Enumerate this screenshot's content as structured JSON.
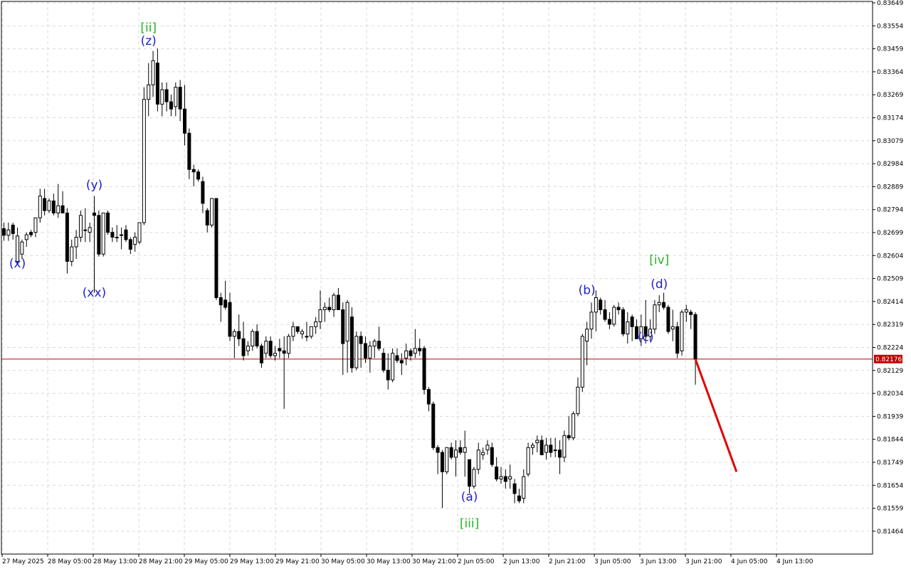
{
  "chart_data": {
    "type": "candlestick",
    "symbol_price_line": "0.82176",
    "y_axis": {
      "ticks": [
        "0.83649",
        "0.83554",
        "0.83459",
        "0.83364",
        "0.83269",
        "0.83174",
        "0.83079",
        "0.82984",
        "0.82889",
        "0.82794",
        "0.82699",
        "0.82604",
        "0.82509",
        "0.82414",
        "0.82319",
        "0.82224",
        "0.82129",
        "0.82034",
        "0.81939",
        "0.81844",
        "0.81749",
        "0.81654",
        "0.81559",
        "0.81464"
      ],
      "range": [
        0.8138,
        0.8368
      ]
    },
    "x_axis": {
      "ticks": [
        "27 May 2025",
        "28 May 05:00",
        "28 May 13:00",
        "28 May 21:00",
        "29 May 05:00",
        "29 May 13:00",
        "29 May 21:00",
        "30 May 05:00",
        "30 May 13:00",
        "30 May 21:00",
        "2 Jun 05:00",
        "2 Jun 13:00",
        "2 Jun 21:00",
        "3 Jun 05:00",
        "3 Jun 13:00",
        "3 Jun 21:00",
        "4 Jun 05:00",
        "4 Jun 13:00"
      ]
    },
    "grid": true,
    "candles": [
      {
        "o": 0.82715,
        "h": 0.8274,
        "l": 0.82665,
        "c": 0.82688
      },
      {
        "o": 0.82688,
        "h": 0.8274,
        "l": 0.82665,
        "c": 0.8271
      },
      {
        "o": 0.8273,
        "h": 0.8274,
        "l": 0.8267,
        "c": 0.82695
      },
      {
        "o": 0.8258,
        "h": 0.8272,
        "l": 0.8257,
        "c": 0.82685
      },
      {
        "o": 0.8261,
        "h": 0.8267,
        "l": 0.8259,
        "c": 0.8266
      },
      {
        "o": 0.8267,
        "h": 0.827,
        "l": 0.8264,
        "c": 0.8269
      },
      {
        "o": 0.827,
        "h": 0.8271,
        "l": 0.8268,
        "c": 0.8269
      },
      {
        "o": 0.827,
        "h": 0.8276,
        "l": 0.8268,
        "c": 0.8276
      },
      {
        "o": 0.8276,
        "h": 0.8288,
        "l": 0.8274,
        "c": 0.8285
      },
      {
        "o": 0.8284,
        "h": 0.8288,
        "l": 0.8277,
        "c": 0.8279
      },
      {
        "o": 0.8279,
        "h": 0.8284,
        "l": 0.8278,
        "c": 0.8283
      },
      {
        "o": 0.8283,
        "h": 0.8286,
        "l": 0.8277,
        "c": 0.8278
      },
      {
        "o": 0.8278,
        "h": 0.829,
        "l": 0.8276,
        "c": 0.8281
      },
      {
        "o": 0.8281,
        "h": 0.8287,
        "l": 0.8278,
        "c": 0.8278
      },
      {
        "o": 0.8278,
        "h": 0.828,
        "l": 0.8253,
        "c": 0.8258
      },
      {
        "o": 0.8258,
        "h": 0.8267,
        "l": 0.8256,
        "c": 0.8264
      },
      {
        "o": 0.8264,
        "h": 0.8271,
        "l": 0.8259,
        "c": 0.8268
      },
      {
        "o": 0.8268,
        "h": 0.8279,
        "l": 0.8266,
        "c": 0.8277
      },
      {
        "o": 0.8271,
        "h": 0.828,
        "l": 0.8266,
        "c": 0.8271
      },
      {
        "o": 0.827,
        "h": 0.8274,
        "l": 0.8266,
        "c": 0.8272
      },
      {
        "o": 0.8278,
        "h": 0.8285,
        "l": 0.8245,
        "c": 0.8277
      },
      {
        "o": 0.8277,
        "h": 0.8279,
        "l": 0.826,
        "c": 0.8261
      },
      {
        "o": 0.8261,
        "h": 0.8278,
        "l": 0.826,
        "c": 0.8278
      },
      {
        "o": 0.8278,
        "h": 0.8279,
        "l": 0.8269,
        "c": 0.827
      },
      {
        "o": 0.827,
        "h": 0.8272,
        "l": 0.8266,
        "c": 0.8268
      },
      {
        "o": 0.8268,
        "h": 0.8273,
        "l": 0.8266,
        "c": 0.8268
      },
      {
        "o": 0.8269,
        "h": 0.8272,
        "l": 0.8263,
        "c": 0.8269
      },
      {
        "o": 0.8271,
        "h": 0.8273,
        "l": 0.8266,
        "c": 0.8267
      },
      {
        "o": 0.8267,
        "h": 0.8268,
        "l": 0.8261,
        "c": 0.8263
      },
      {
        "o": 0.8265,
        "h": 0.827,
        "l": 0.8262,
        "c": 0.8268
      },
      {
        "o": 0.8266,
        "h": 0.8274,
        "l": 0.8265,
        "c": 0.8274
      },
      {
        "o": 0.8274,
        "h": 0.833,
        "l": 0.8273,
        "c": 0.8325
      },
      {
        "o": 0.8325,
        "h": 0.834,
        "l": 0.8318,
        "c": 0.8331
      },
      {
        "o": 0.8331,
        "h": 0.8345,
        "l": 0.8326,
        "c": 0.8341
      },
      {
        "o": 0.834,
        "h": 0.8346,
        "l": 0.832,
        "c": 0.8323
      },
      {
        "o": 0.8323,
        "h": 0.8332,
        "l": 0.8318,
        "c": 0.8329
      },
      {
        "o": 0.8329,
        "h": 0.8332,
        "l": 0.832,
        "c": 0.8324
      },
      {
        "o": 0.8324,
        "h": 0.8327,
        "l": 0.8318,
        "c": 0.8321
      },
      {
        "o": 0.8322,
        "h": 0.8332,
        "l": 0.8318,
        "c": 0.833
      },
      {
        "o": 0.833,
        "h": 0.8333,
        "l": 0.8316,
        "c": 0.8321
      },
      {
        "o": 0.8321,
        "h": 0.8331,
        "l": 0.8306,
        "c": 0.8311
      },
      {
        "o": 0.8311,
        "h": 0.8313,
        "l": 0.8292,
        "c": 0.8296
      },
      {
        "o": 0.8296,
        "h": 0.8298,
        "l": 0.8289,
        "c": 0.8295
      },
      {
        "o": 0.8295,
        "h": 0.8296,
        "l": 0.8291,
        "c": 0.8292
      },
      {
        "o": 0.8291,
        "h": 0.8293,
        "l": 0.8278,
        "c": 0.8282
      },
      {
        "o": 0.8279,
        "h": 0.828,
        "l": 0.827,
        "c": 0.8273
      },
      {
        "o": 0.8273,
        "h": 0.8284,
        "l": 0.8272,
        "c": 0.8284
      },
      {
        "o": 0.8284,
        "h": 0.8284,
        "l": 0.8242,
        "c": 0.8243
      },
      {
        "o": 0.8243,
        "h": 0.8245,
        "l": 0.8233,
        "c": 0.824
      },
      {
        "o": 0.8242,
        "h": 0.825,
        "l": 0.8238,
        "c": 0.8239
      },
      {
        "o": 0.8241,
        "h": 0.8245,
        "l": 0.8225,
        "c": 0.8227
      },
      {
        "o": 0.8227,
        "h": 0.823,
        "l": 0.8218,
        "c": 0.8229
      },
      {
        "o": 0.8229,
        "h": 0.8236,
        "l": 0.8223,
        "c": 0.8226
      },
      {
        "o": 0.8226,
        "h": 0.8233,
        "l": 0.8217,
        "c": 0.8219
      },
      {
        "o": 0.8221,
        "h": 0.8225,
        "l": 0.8219,
        "c": 0.8223
      },
      {
        "o": 0.8223,
        "h": 0.823,
        "l": 0.8221,
        "c": 0.8229
      },
      {
        "o": 0.8229,
        "h": 0.8232,
        "l": 0.8222,
        "c": 0.8223
      },
      {
        "o": 0.8223,
        "h": 0.8224,
        "l": 0.8214,
        "c": 0.8216
      },
      {
        "o": 0.822,
        "h": 0.8227,
        "l": 0.8218,
        "c": 0.8225
      },
      {
        "o": 0.8225,
        "h": 0.8227,
        "l": 0.8218,
        "c": 0.8219
      },
      {
        "o": 0.8219,
        "h": 0.8223,
        "l": 0.8217,
        "c": 0.822
      },
      {
        "o": 0.8222,
        "h": 0.8226,
        "l": 0.8218,
        "c": 0.8221
      },
      {
        "o": 0.8221,
        "h": 0.8227,
        "l": 0.8197,
        "c": 0.822
      },
      {
        "o": 0.822,
        "h": 0.8228,
        "l": 0.8218,
        "c": 0.8227
      },
      {
        "o": 0.8227,
        "h": 0.8233,
        "l": 0.8225,
        "c": 0.8231
      },
      {
        "o": 0.8231,
        "h": 0.8231,
        "l": 0.8228,
        "c": 0.8229
      },
      {
        "o": 0.8228,
        "h": 0.823,
        "l": 0.8226,
        "c": 0.8229
      },
      {
        "o": 0.8227,
        "h": 0.8233,
        "l": 0.8225,
        "c": 0.8227
      },
      {
        "o": 0.8227,
        "h": 0.8231,
        "l": 0.8226,
        "c": 0.8231
      },
      {
        "o": 0.8231,
        "h": 0.8235,
        "l": 0.8228,
        "c": 0.8233
      },
      {
        "o": 0.8233,
        "h": 0.8246,
        "l": 0.823,
        "c": 0.8238
      },
      {
        "o": 0.8238,
        "h": 0.8241,
        "l": 0.8233,
        "c": 0.8239
      },
      {
        "o": 0.8239,
        "h": 0.8243,
        "l": 0.8237,
        "c": 0.8238
      },
      {
        "o": 0.8238,
        "h": 0.8245,
        "l": 0.8235,
        "c": 0.8244
      },
      {
        "o": 0.8244,
        "h": 0.8247,
        "l": 0.8238,
        "c": 0.8238
      },
      {
        "o": 0.8238,
        "h": 0.8241,
        "l": 0.8211,
        "c": 0.8224
      },
      {
        "o": 0.8225,
        "h": 0.8242,
        "l": 0.8212,
        "c": 0.8241
      },
      {
        "o": 0.8235,
        "h": 0.8239,
        "l": 0.8212,
        "c": 0.8214
      },
      {
        "o": 0.8214,
        "h": 0.8229,
        "l": 0.8213,
        "c": 0.8227
      },
      {
        "o": 0.8227,
        "h": 0.8229,
        "l": 0.8214,
        "c": 0.8224
      },
      {
        "o": 0.8224,
        "h": 0.8227,
        "l": 0.8216,
        "c": 0.8218
      },
      {
        "o": 0.8218,
        "h": 0.8225,
        "l": 0.8212,
        "c": 0.8223
      },
      {
        "o": 0.8223,
        "h": 0.8226,
        "l": 0.8218,
        "c": 0.8225
      },
      {
        "o": 0.8225,
        "h": 0.8231,
        "l": 0.8221,
        "c": 0.8222
      },
      {
        "o": 0.822,
        "h": 0.8222,
        "l": 0.8212,
        "c": 0.8213
      },
      {
        "o": 0.8213,
        "h": 0.822,
        "l": 0.8205,
        "c": 0.8209
      },
      {
        "o": 0.8209,
        "h": 0.8222,
        "l": 0.8208,
        "c": 0.822
      },
      {
        "o": 0.8219,
        "h": 0.8222,
        "l": 0.8216,
        "c": 0.8217
      },
      {
        "o": 0.8217,
        "h": 0.822,
        "l": 0.8211,
        "c": 0.8216
      },
      {
        "o": 0.8218,
        "h": 0.8224,
        "l": 0.8215,
        "c": 0.8221
      },
      {
        "o": 0.8221,
        "h": 0.8222,
        "l": 0.8217,
        "c": 0.8219
      },
      {
        "o": 0.822,
        "h": 0.823,
        "l": 0.8218,
        "c": 0.8222
      },
      {
        "o": 0.8222,
        "h": 0.8226,
        "l": 0.8219,
        "c": 0.8221
      },
      {
        "o": 0.8222,
        "h": 0.8223,
        "l": 0.8203,
        "c": 0.8205
      },
      {
        "o": 0.8205,
        "h": 0.8206,
        "l": 0.8196,
        "c": 0.8199
      },
      {
        "o": 0.8199,
        "h": 0.82,
        "l": 0.818,
        "c": 0.8181
      },
      {
        "o": 0.8181,
        "h": 0.8182,
        "l": 0.817,
        "c": 0.8179
      },
      {
        "o": 0.8179,
        "h": 0.818,
        "l": 0.8156,
        "c": 0.8171
      },
      {
        "o": 0.8171,
        "h": 0.818,
        "l": 0.817,
        "c": 0.8181
      },
      {
        "o": 0.8181,
        "h": 0.8183,
        "l": 0.8176,
        "c": 0.8177
      },
      {
        "o": 0.8177,
        "h": 0.8184,
        "l": 0.8169,
        "c": 0.818
      },
      {
        "o": 0.8181,
        "h": 0.8184,
        "l": 0.8178,
        "c": 0.8179
      },
      {
        "o": 0.8179,
        "h": 0.8188,
        "l": 0.8169,
        "c": 0.8181
      },
      {
        "o": 0.8176,
        "h": 0.8176,
        "l": 0.8162,
        "c": 0.8165
      },
      {
        "o": 0.8165,
        "h": 0.8173,
        "l": 0.8164,
        "c": 0.8172
      },
      {
        "o": 0.8172,
        "h": 0.8183,
        "l": 0.817,
        "c": 0.818
      },
      {
        "o": 0.8178,
        "h": 0.8181,
        "l": 0.8176,
        "c": 0.8179
      },
      {
        "o": 0.818,
        "h": 0.8184,
        "l": 0.8178,
        "c": 0.8182
      },
      {
        "o": 0.8181,
        "h": 0.8183,
        "l": 0.8173,
        "c": 0.8174
      },
      {
        "o": 0.8173,
        "h": 0.8177,
        "l": 0.8167,
        "c": 0.8168
      },
      {
        "o": 0.8168,
        "h": 0.8173,
        "l": 0.8166,
        "c": 0.8169
      },
      {
        "o": 0.8169,
        "h": 0.8172,
        "l": 0.8164,
        "c": 0.8167
      },
      {
        "o": 0.8168,
        "h": 0.8174,
        "l": 0.8164,
        "c": 0.8169
      },
      {
        "o": 0.8166,
        "h": 0.8168,
        "l": 0.8158,
        "c": 0.8162
      },
      {
        "o": 0.8161,
        "h": 0.8164,
        "l": 0.8158,
        "c": 0.8159
      },
      {
        "o": 0.816,
        "h": 0.8172,
        "l": 0.8158,
        "c": 0.8169
      },
      {
        "o": 0.817,
        "h": 0.8183,
        "l": 0.8169,
        "c": 0.8181
      },
      {
        "o": 0.8181,
        "h": 0.8183,
        "l": 0.8178,
        "c": 0.8182
      },
      {
        "o": 0.8183,
        "h": 0.8186,
        "l": 0.8179,
        "c": 0.8184
      },
      {
        "o": 0.8184,
        "h": 0.8186,
        "l": 0.8178,
        "c": 0.8178
      },
      {
        "o": 0.8179,
        "h": 0.8185,
        "l": 0.8176,
        "c": 0.8182
      },
      {
        "o": 0.8182,
        "h": 0.8185,
        "l": 0.8177,
        "c": 0.8179
      },
      {
        "o": 0.818,
        "h": 0.8185,
        "l": 0.8177,
        "c": 0.818
      },
      {
        "o": 0.818,
        "h": 0.8184,
        "l": 0.817,
        "c": 0.8177
      },
      {
        "o": 0.8177,
        "h": 0.8188,
        "l": 0.8175,
        "c": 0.8186
      },
      {
        "o": 0.8186,
        "h": 0.8194,
        "l": 0.8184,
        "c": 0.8185
      },
      {
        "o": 0.8185,
        "h": 0.8196,
        "l": 0.8184,
        "c": 0.8195
      },
      {
        "o": 0.8195,
        "h": 0.821,
        "l": 0.8194,
        "c": 0.8206
      },
      {
        "o": 0.8206,
        "h": 0.8228,
        "l": 0.8204,
        "c": 0.8227
      },
      {
        "o": 0.8225,
        "h": 0.8233,
        "l": 0.8215,
        "c": 0.823
      },
      {
        "o": 0.823,
        "h": 0.8241,
        "l": 0.8226,
        "c": 0.8237
      },
      {
        "o": 0.8237,
        "h": 0.8246,
        "l": 0.8229,
        "c": 0.8243
      },
      {
        "o": 0.8242,
        "h": 0.8243,
        "l": 0.8236,
        "c": 0.8238
      },
      {
        "o": 0.8238,
        "h": 0.8242,
        "l": 0.8233,
        "c": 0.8234
      },
      {
        "o": 0.8234,
        "h": 0.8237,
        "l": 0.823,
        "c": 0.8232
      },
      {
        "o": 0.8232,
        "h": 0.824,
        "l": 0.8231,
        "c": 0.8239
      },
      {
        "o": 0.8239,
        "h": 0.8241,
        "l": 0.8236,
        "c": 0.8238
      },
      {
        "o": 0.8238,
        "h": 0.8239,
        "l": 0.8227,
        "c": 0.8228
      },
      {
        "o": 0.8228,
        "h": 0.8237,
        "l": 0.8224,
        "c": 0.8233
      },
      {
        "o": 0.8235,
        "h": 0.8236,
        "l": 0.8225,
        "c": 0.8231
      },
      {
        "o": 0.8231,
        "h": 0.8234,
        "l": 0.8226,
        "c": 0.8226
      },
      {
        "o": 0.8226,
        "h": 0.8236,
        "l": 0.8223,
        "c": 0.8231
      },
      {
        "o": 0.8231,
        "h": 0.8242,
        "l": 0.8224,
        "c": 0.8227
      },
      {
        "o": 0.8227,
        "h": 0.8234,
        "l": 0.8225,
        "c": 0.823
      },
      {
        "o": 0.823,
        "h": 0.8242,
        "l": 0.8228,
        "c": 0.824
      },
      {
        "o": 0.824,
        "h": 0.8244,
        "l": 0.8237,
        "c": 0.8241
      },
      {
        "o": 0.8241,
        "h": 0.8245,
        "l": 0.8238,
        "c": 0.8239
      },
      {
        "o": 0.8239,
        "h": 0.824,
        "l": 0.8228,
        "c": 0.8229
      },
      {
        "o": 0.823,
        "h": 0.8238,
        "l": 0.8225,
        "c": 0.8231
      },
      {
        "o": 0.8231,
        "h": 0.8233,
        "l": 0.8218,
        "c": 0.822
      },
      {
        "o": 0.8221,
        "h": 0.8238,
        "l": 0.8219,
        "c": 0.8237
      },
      {
        "o": 0.8237,
        "h": 0.824,
        "l": 0.8233,
        "c": 0.8238
      },
      {
        "o": 0.8237,
        "h": 0.8238,
        "l": 0.823,
        "c": 0.8236
      },
      {
        "o": 0.8236,
        "h": 0.8237,
        "l": 0.8207,
        "c": 0.82176
      }
    ],
    "annotations": [
      {
        "label": "(x)",
        "color": "blue",
        "bar": 3,
        "price": 0.82555
      },
      {
        "label": "(y)",
        "color": "blue",
        "bar": 20,
        "price": 0.8288
      },
      {
        "label": "(xx)",
        "color": "blue",
        "bar": 20,
        "price": 0.82435
      },
      {
        "label": "[ii]",
        "color": "green",
        "bar": 32,
        "price": 0.8353
      },
      {
        "label": "(z)",
        "color": "blue",
        "bar": 32,
        "price": 0.83475
      },
      {
        "label": "(a)",
        "color": "blue",
        "bar": 103,
        "price": 0.8159
      },
      {
        "label": "[iii]",
        "color": "green",
        "bar": 103,
        "price": 0.8148
      },
      {
        "label": "(b)",
        "color": "blue",
        "bar": 129,
        "price": 0.82445
      },
      {
        "label": "(c)",
        "color": "blue",
        "bar": 142,
        "price": 0.8225
      },
      {
        "label": "[iv]",
        "color": "green",
        "bar": 145,
        "price": 0.8257
      },
      {
        "label": "(d)",
        "color": "blue",
        "bar": 145,
        "price": 0.8247
      }
    ],
    "forecast": {
      "from_price": 0.82176,
      "to_price": 0.8171,
      "bars_ahead": 7
    }
  },
  "colors": {
    "bull_body": "#ffffff",
    "bear_body": "#000000",
    "wick": "#000000",
    "grid": "#d9d9d9",
    "price_line": "#c00000",
    "price_label_bg": "#c00000",
    "forecast": "#e00000",
    "wave_blue": "#2020d0",
    "wave_green": "#22b422"
  }
}
